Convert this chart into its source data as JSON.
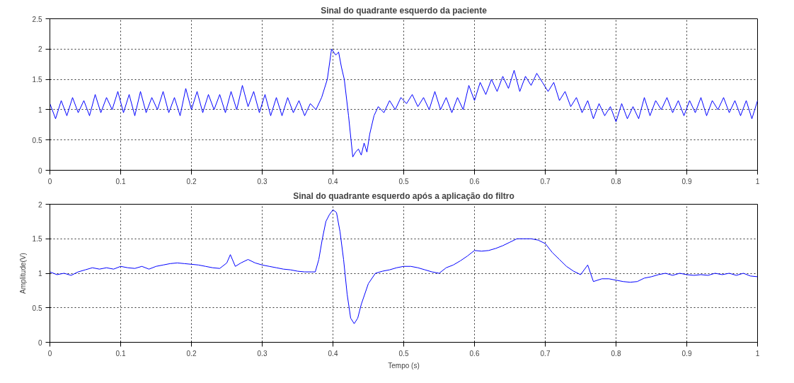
{
  "chart_data": [
    {
      "type": "line",
      "title": "Sinal do quadrante esquerdo da paciente",
      "grid": true,
      "xlim": [
        0,
        1
      ],
      "ylim": [
        0,
        2.5
      ],
      "xticks": [
        0,
        0.1,
        0.2,
        0.3,
        0.4,
        0.5,
        0.6,
        0.7,
        0.8,
        0.9,
        1
      ],
      "yticks": [
        0,
        0.5,
        1,
        1.5,
        2,
        2.5
      ],
      "series": [
        {
          "color": "#0000ff",
          "x": [
            0,
            0.008,
            0.016,
            0.024,
            0.032,
            0.04,
            0.048,
            0.056,
            0.064,
            0.072,
            0.08,
            0.088,
            0.096,
            0.104,
            0.112,
            0.12,
            0.128,
            0.136,
            0.144,
            0.152,
            0.16,
            0.168,
            0.176,
            0.184,
            0.192,
            0.2,
            0.208,
            0.216,
            0.224,
            0.232,
            0.24,
            0.248,
            0.256,
            0.264,
            0.272,
            0.28,
            0.288,
            0.296,
            0.304,
            0.312,
            0.32,
            0.328,
            0.336,
            0.344,
            0.352,
            0.36,
            0.368,
            0.376,
            0.384,
            0.392,
            0.398,
            0.404,
            0.408,
            0.412,
            0.416,
            0.422,
            0.428,
            0.432,
            0.436,
            0.44,
            0.444,
            0.448,
            0.452,
            0.458,
            0.464,
            0.472,
            0.48,
            0.488,
            0.496,
            0.504,
            0.512,
            0.52,
            0.528,
            0.536,
            0.544,
            0.552,
            0.56,
            0.568,
            0.576,
            0.584,
            0.592,
            0.6,
            0.608,
            0.616,
            0.624,
            0.632,
            0.64,
            0.648,
            0.656,
            0.664,
            0.672,
            0.68,
            0.688,
            0.696,
            0.704,
            0.712,
            0.72,
            0.728,
            0.736,
            0.744,
            0.752,
            0.76,
            0.768,
            0.776,
            0.784,
            0.792,
            0.8,
            0.808,
            0.816,
            0.824,
            0.832,
            0.84,
            0.848,
            0.856,
            0.864,
            0.872,
            0.88,
            0.888,
            0.896,
            0.904,
            0.912,
            0.92,
            0.928,
            0.936,
            0.944,
            0.952,
            0.96,
            0.968,
            0.976,
            0.984,
            0.992,
            1.0
          ],
          "values": [
            1.1,
            0.85,
            1.15,
            0.9,
            1.2,
            0.95,
            1.15,
            0.9,
            1.25,
            0.95,
            1.2,
            1.0,
            1.3,
            0.95,
            1.25,
            0.9,
            1.3,
            0.95,
            1.2,
            1.0,
            1.3,
            0.95,
            1.2,
            0.9,
            1.35,
            1.0,
            1.3,
            0.95,
            1.25,
            1.0,
            1.25,
            0.95,
            1.3,
            1.0,
            1.4,
            1.05,
            1.3,
            0.95,
            1.25,
            0.9,
            1.2,
            0.9,
            1.2,
            0.95,
            1.15,
            0.9,
            1.1,
            1.0,
            1.2,
            1.5,
            2.0,
            1.9,
            1.95,
            1.7,
            1.5,
            0.9,
            0.22,
            0.3,
            0.35,
            0.25,
            0.45,
            0.3,
            0.6,
            0.9,
            1.05,
            0.95,
            1.15,
            1.0,
            1.2,
            1.1,
            1.25,
            1.05,
            1.2,
            1.0,
            1.3,
            1.0,
            1.2,
            0.95,
            1.2,
            1.0,
            1.4,
            1.15,
            1.45,
            1.25,
            1.5,
            1.3,
            1.55,
            1.35,
            1.65,
            1.3,
            1.55,
            1.4,
            1.6,
            1.45,
            1.3,
            1.45,
            1.15,
            1.3,
            1.05,
            1.2,
            0.95,
            1.15,
            0.85,
            1.1,
            0.9,
            1.05,
            0.8,
            1.1,
            0.85,
            1.05,
            0.85,
            1.2,
            0.9,
            1.15,
            1.0,
            1.2,
            0.95,
            1.15,
            0.9,
            1.15,
            0.95,
            1.2,
            0.9,
            1.15,
            1.0,
            1.2,
            0.95,
            1.15,
            0.9,
            1.15,
            0.85,
            1.15
          ]
        }
      ]
    },
    {
      "type": "line",
      "title": "Sinal do quadrante esquerdo após a aplicação do filtro",
      "xlabel": "Tempo (s)",
      "ylabel": "Amplitude(V)",
      "grid": true,
      "xlim": [
        0,
        1
      ],
      "ylim": [
        0,
        2
      ],
      "xticks": [
        0,
        0.1,
        0.2,
        0.3,
        0.4,
        0.5,
        0.6,
        0.7,
        0.8,
        0.9,
        1
      ],
      "yticks": [
        0,
        0.5,
        1,
        1.5,
        2
      ],
      "series": [
        {
          "color": "#0000ff",
          "x": [
            0,
            0.01,
            0.02,
            0.03,
            0.04,
            0.05,
            0.06,
            0.07,
            0.08,
            0.09,
            0.1,
            0.11,
            0.12,
            0.13,
            0.14,
            0.15,
            0.16,
            0.17,
            0.18,
            0.19,
            0.2,
            0.21,
            0.22,
            0.23,
            0.24,
            0.25,
            0.255,
            0.262,
            0.27,
            0.28,
            0.29,
            0.3,
            0.31,
            0.32,
            0.33,
            0.34,
            0.35,
            0.36,
            0.37,
            0.375,
            0.38,
            0.385,
            0.39,
            0.395,
            0.4,
            0.405,
            0.41,
            0.415,
            0.42,
            0.425,
            0.43,
            0.435,
            0.44,
            0.45,
            0.46,
            0.47,
            0.48,
            0.49,
            0.5,
            0.51,
            0.52,
            0.53,
            0.54,
            0.55,
            0.56,
            0.57,
            0.58,
            0.59,
            0.6,
            0.61,
            0.62,
            0.63,
            0.64,
            0.65,
            0.66,
            0.67,
            0.68,
            0.69,
            0.7,
            0.71,
            0.72,
            0.73,
            0.74,
            0.75,
            0.76,
            0.768,
            0.78,
            0.79,
            0.8,
            0.81,
            0.82,
            0.83,
            0.84,
            0.85,
            0.86,
            0.87,
            0.88,
            0.89,
            0.9,
            0.91,
            0.92,
            0.93,
            0.94,
            0.95,
            0.96,
            0.97,
            0.98,
            0.99,
            1.0
          ],
          "values": [
            1.02,
            0.98,
            1.0,
            0.97,
            1.02,
            1.05,
            1.08,
            1.06,
            1.08,
            1.06,
            1.1,
            1.08,
            1.07,
            1.1,
            1.06,
            1.1,
            1.12,
            1.14,
            1.15,
            1.14,
            1.13,
            1.12,
            1.1,
            1.08,
            1.07,
            1.15,
            1.27,
            1.1,
            1.15,
            1.2,
            1.15,
            1.12,
            1.1,
            1.08,
            1.06,
            1.05,
            1.03,
            1.02,
            1.02,
            1.02,
            1.2,
            1.5,
            1.75,
            1.85,
            1.92,
            1.88,
            1.6,
            1.2,
            0.7,
            0.35,
            0.27,
            0.35,
            0.55,
            0.85,
            1.0,
            1.03,
            1.05,
            1.08,
            1.1,
            1.1,
            1.08,
            1.05,
            1.02,
            1.0,
            1.08,
            1.12,
            1.18,
            1.25,
            1.33,
            1.32,
            1.33,
            1.36,
            1.4,
            1.45,
            1.5,
            1.5,
            1.5,
            1.48,
            1.43,
            1.3,
            1.2,
            1.1,
            1.03,
            0.98,
            1.12,
            0.88,
            0.92,
            0.92,
            0.9,
            0.88,
            0.87,
            0.88,
            0.93,
            0.95,
            0.98,
            1.0,
            0.97,
            1.0,
            0.98,
            0.97,
            0.98,
            0.97,
            1.0,
            0.98,
            1.0,
            0.97,
            1.0,
            0.96,
            0.95
          ]
        }
      ]
    }
  ]
}
